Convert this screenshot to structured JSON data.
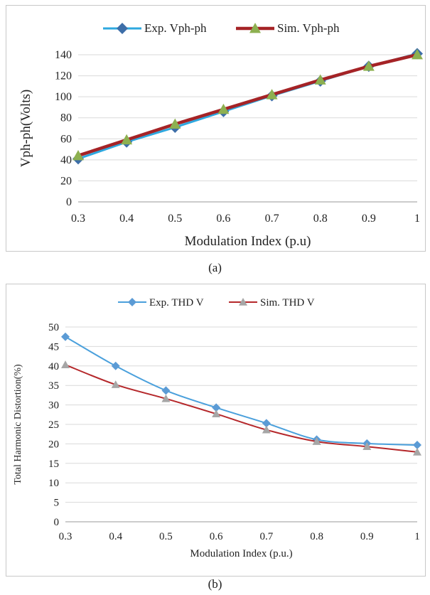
{
  "captions": {
    "a": "(a)",
    "b": "(b)"
  },
  "chart_data": [
    {
      "type": "line",
      "xlabel": "Modulation Index (p.u)",
      "ylabel": "Vph-ph(Volts)",
      "x": [
        0.3,
        0.4,
        0.5,
        0.6,
        0.7,
        0.8,
        0.9,
        1
      ],
      "x_tick_labels": [
        "0.3",
        "0.4",
        "0.5",
        "0.6",
        "0.7",
        "0.8",
        "0.9",
        "1"
      ],
      "ylim": [
        0,
        140
      ],
      "y_ticks": [
        0,
        20,
        40,
        60,
        80,
        100,
        120,
        140
      ],
      "grid": "horizontal",
      "legend_position": "top",
      "series": [
        {
          "name": "Exp.  Vph-ph",
          "color": "#2ea8df",
          "marker": "diamond",
          "values": [
            41,
            57,
            71,
            86,
            101,
            115,
            129,
            141
          ]
        },
        {
          "name": "Sim.  Vph-ph",
          "color": "#a52326",
          "marker": "triangle",
          "marker_color": "#8db050",
          "values": [
            44,
            59,
            74,
            88,
            102,
            116,
            129,
            140
          ]
        }
      ]
    },
    {
      "type": "line",
      "xlabel": "Modulation Index  (p.u.)",
      "ylabel": "Total Harmonic Distortion(%)",
      "x": [
        0.3,
        0.4,
        0.5,
        0.6,
        0.7,
        0.8,
        0.9,
        1
      ],
      "x_tick_labels": [
        "0.3",
        "0.4",
        "0.5",
        "0.6",
        "0.7",
        "0.8",
        "0.9",
        "1"
      ],
      "ylim": [
        0,
        50
      ],
      "y_ticks": [
        0,
        5,
        10,
        15,
        20,
        25,
        30,
        35,
        40,
        45,
        50
      ],
      "grid": "horizontal",
      "legend_position": "top",
      "series": [
        {
          "name": "Exp. THD V",
          "color": "#4aa0dc",
          "marker": "diamond",
          "marker_color": "#5b9bd5",
          "values": [
            47.5,
            40,
            33.7,
            29.3,
            25.3,
            21.1,
            20.1,
            19.7
          ]
        },
        {
          "name": "Sim. THD V",
          "color": "#b5282b",
          "marker": "triangle",
          "marker_color": "#a6a6a6",
          "values": [
            40.3,
            35.2,
            31.6,
            27.7,
            23.6,
            20.6,
            19.3,
            17.9
          ]
        }
      ]
    }
  ]
}
